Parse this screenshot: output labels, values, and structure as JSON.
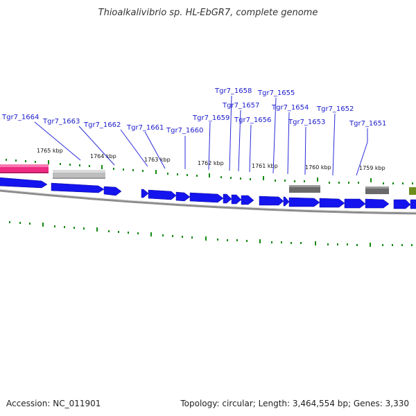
{
  "header": {
    "title": "Thioalkalivibrio sp. HL-EbGR7, complete genome"
  },
  "footer": {
    "accession": "Accession: NC_011901",
    "summary": "Topology: circular; Length: 3,464,554 bp; Genes: 3,330"
  },
  "colors": {
    "forward_gene": "#1414ee",
    "reverse_gene": "#1414ee",
    "rna_pink": "#ee2a82",
    "rna_grey_light": "#bdbdbd",
    "rna_grey_dark": "#6a6a6a",
    "other_green": "#6e8e1c",
    "backbone": "#8c8c8c",
    "tick_green": "#128a12",
    "label_blue": "#1a1acc"
  },
  "ruler": {
    "kbp_labels": [
      "1765 kbp",
      "1764 kbp",
      "1763 kbp",
      "1762 kbp",
      "1761 kbp",
      "1760 kbp",
      "1759 kbp"
    ]
  },
  "genes": {
    "labels": [
      "Tgr7_1664",
      "Tgr7_1663",
      "Tgr7_1662",
      "Tgr7_1661",
      "Tgr7_1660",
      "Tgr7_1659",
      "Tgr7_1658",
      "Tgr7_1657",
      "Tgr7_1656",
      "Tgr7_1655",
      "Tgr7_1654",
      "Tgr7_1653",
      "Tgr7_1652",
      "Tgr7_1651"
    ]
  }
}
